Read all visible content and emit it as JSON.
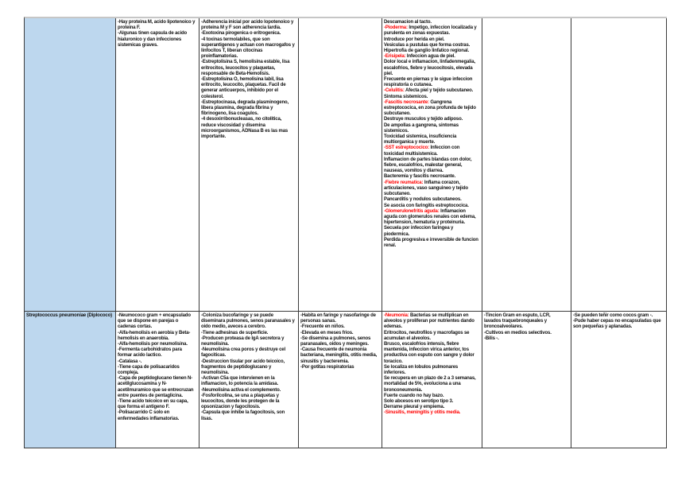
{
  "document": {
    "type": "study-notes-table",
    "language": "es",
    "topic": "Streptococcus"
  },
  "colors": {
    "row_header_bg": "#bdd7ee",
    "border": "#3b3b3b",
    "page_top_border": "#c6c6c6",
    "red_text": "#ff0000",
    "body_text": "#111111"
  },
  "table": {
    "column_keys": [
      "organism",
      "general-characteristics",
      "virulence-factors",
      "epidemiology",
      "diseases",
      "diagnosis",
      "observations"
    ],
    "rows": [
      {
        "organism": "",
        "cells": [
          [
            [
              {
                "t": "-Hay proteina M, acido lipotenoico y proteina F."
              }
            ],
            [
              {
                "t": "-Algunas tinen capsula de acido hialuronico y dan infecciones sistemicas graves."
              }
            ]
          ],
          [
            [
              {
                "t": "-Adherencia inicial por acido lopotenoico y proteina M y F son adherencia tardia."
              }
            ],
            [
              {
                "t": "-Exotoxina pirogenica o eritrogenica."
              }
            ],
            [
              {
                "t": "-4 toxinas termolabiles, que son superantigenos y actuan con macrogafos y linfocitos T, liberan citocinas proinflamatorias."
              }
            ],
            [
              {
                "t": "-Estreptolisina S, hemolisina estable, lisa eritrocitos, leucocitos y plaquetas, responsable de Beta-Hemolisis."
              }
            ],
            [
              {
                "t": "-Estreptolisina O, hemolisina labil, lisa eritrocito, leucocito, plaquetas. Facil de generar anticuerpos, inhibido por el colesterol."
              }
            ],
            [
              {
                "t": "-Estreptocinasa, degrada plasminogeno, libera plasmina, degrada fibrina y fibrinogeno, lisa coagulos."
              }
            ],
            [
              {
                "t": "-4 desoxirribonucleasas, no citolitica, reduce viscosidad y disemina microorganismos, ADNasa B es las mas importante."
              }
            ]
          ],
          [],
          [
            [
              {
                "t": "Descamacion al tacto."
              }
            ],
            [
              {
                "t": "-Pioderma:",
                "red": true
              },
              {
                "t": " Impetigo, infeccion localizada y purulenta en zonas expuestas."
              }
            ],
            [
              {
                "t": "Introduce por herida en piel."
              }
            ],
            [
              {
                "t": "Vesiculas a pustulas que forma costras."
              }
            ],
            [
              {
                "t": "Hipertrofia de ganglio linfatico regional."
              }
            ],
            [
              {
                "t": "-Erisipela:",
                "red": true
              },
              {
                "t": " Infeccion agua de piel."
              }
            ],
            [
              {
                "t": "Dolor local e inflamacion, linfadenmegalia, escalofrios, fiebre y leucocitosis, elevada piel."
              }
            ],
            [
              {
                "t": "Frecuente en piernas y le sigue infeccion respiratoria o cutanea."
              }
            ],
            [
              {
                "t": "-Celulitis:",
                "red": true
              },
              {
                "t": " Afecta piel y tejido subcutaneo. Sintoma sistemicos."
              }
            ],
            [
              {
                "t": "-Fascitis necrosante:",
                "red": true
              },
              {
                "t": " Gangrena estreptococica, en zona profunda de tejido subcutaneo."
              }
            ],
            [
              {
                "t": "Destruye musculos y tejido adiposo."
              }
            ],
            [
              {
                "t": "De ampollas a gangrena, sintomas sistemicos."
              }
            ],
            [
              {
                "t": "Toxicidad sistemica, insuficiencia multiorganica y muerte."
              }
            ],
            [
              {
                "t": "-SST estreptococico:",
                "red": true
              },
              {
                "t": " Infeccion con toxicidad multisistemica."
              }
            ],
            [
              {
                "t": "Inflamacion de partes blandas con dolor, fiebre, escalofrios, malestar general, nauseas, vomitos y diarrea."
              }
            ],
            [
              {
                "t": "Bacteremia y fascitis necrosante."
              }
            ],
            [
              {
                "t": "-Fiebre reumatica:",
                "red": true
              },
              {
                "t": " Inflama corazon, articulaciones, vaso sanguineo y tejido subcutaneo."
              }
            ],
            [
              {
                "t": "Pancarditis y nodulos subcutaneos."
              }
            ],
            [
              {
                "t": "Se asocia con faringitis estreptococica."
              }
            ],
            [
              {
                "t": "-Glomerulonefritis aguda:",
                "red": true
              },
              {
                "t": " Inflamacion aguda con glomerulos renales con edema, hipertension, hematuria y proteinuria."
              }
            ],
            [
              {
                "t": "Secuela por infeccion faringea y piodermica."
              }
            ],
            [
              {
                "t": "Perdida progresiva e irreversible de funcion renal."
              }
            ]
          ],
          [],
          []
        ]
      },
      {
        "organism": "Streptococcus pneumoniae (Diplococo)",
        "cells": [
          [
            [
              {
                "t": "-Neumococo gram + encapsulado que se dispone en parejas o cadenas cortas."
              }
            ],
            [
              {
                "t": "-Alfa-hemolisis en aerobia y Beta-hemolisis en anaerobia."
              }
            ],
            [
              {
                "t": "-Alfa-hemolisis por neumolisina."
              }
            ],
            [
              {
                "t": "-Fermenta carbohidratos para formar acido lactico."
              }
            ],
            [
              {
                "t": "-Catalasa -."
              }
            ],
            [
              {
                "t": "-Tiene capa de polisacaridos compleja."
              }
            ],
            [
              {
                "t": "-Capa de peptidoglucano tienen N-acetilglucosamina y N-acetilmuramico que se entrecruzan entre puentes de pentaglicina."
              }
            ],
            [
              {
                "t": "-Tiene acido teicoico en su capa, que forma el antigeno F."
              }
            ],
            [
              {
                "t": "-Polisacarrido C solo en enfermedades inflamatorias."
              }
            ]
          ],
          [
            [
              {
                "t": "-Coloniza bucofaringe y se puede diseminara pulmones, senos paranasales y oido medio, aveces a cerebro."
              }
            ],
            [
              {
                "t": "-Tiene adhesinas de superficie."
              }
            ],
            [
              {
                "t": "-Producen proteasa de IgA secretora y neumolisina."
              }
            ],
            [
              {
                "t": "-Neumolisina crea poros y destruye cel fagociticas."
              }
            ],
            [
              {
                "t": "-Destruccion tisular por acido teicoico, fragmentos de peptidoglucano y neumolisina."
              }
            ],
            [
              {
                "t": "-Activan C5a que intervienen en la inflamacion, lo potencia la amidasa."
              }
            ],
            [
              {
                "t": "-Neumolisina activa el complemento."
              }
            ],
            [
              {
                "t": "-Fosforilcolina, se una a plaquetas y leucocitos, donde les protegen de la opsonizacion y fagocitosis."
              }
            ],
            [
              {
                "t": "-Capsula que inhibe la fagocitosis, son lisas."
              }
            ]
          ],
          [
            [
              {
                "t": "-Habita en faringe y nasofaringe de personas sanas."
              }
            ],
            [
              {
                "t": "-Frecuente en niños."
              }
            ],
            [
              {
                "t": "-Elevada en meses frios."
              }
            ],
            [
              {
                "t": "-Se disemina a pulmones, senos paranasales, oidos y meninges."
              }
            ],
            [
              {
                "t": "-Causa frecuente de neumonia bacteriana, meningitis, otitis media, sinusitis y bacteremia."
              }
            ],
            [
              {
                "t": "-Por gotitas respiratorias"
              }
            ]
          ],
          [
            [
              {
                "t": "-Neumonia:",
                "red": true
              },
              {
                "t": " Bacterias se multiplican en alveolos y proliferan por nutrientes dando edemas."
              }
            ],
            [
              {
                "t": "Eritrocitos, neutrofilos y macrofagos se acumulan el alveolos."
              }
            ],
            [
              {
                "t": "Brusco, escalofrios intensis, fiebre mantenida, infeccion virica anterior, tos productiva con esputo con sangre y dolor toracico."
              }
            ],
            [
              {
                "t": "Se localiza en lobulos pulmonares inferiores."
              }
            ],
            [
              {
                "t": "Se recupera en un plazo de 2 a 3 semanas, mortalidad de 5%, evoluciona a una bronconeumonia."
              }
            ],
            [
              {
                "t": "Fuerte cuando no hay bazo."
              }
            ],
            [
              {
                "t": "Solo abcesos en serotipo tipo 3."
              }
            ],
            [
              {
                "t": "Derrame pleural y empiema."
              }
            ],
            [
              {
                "t": "-Sinusitis, meningitis y otitis media.",
                "red": true
              }
            ]
          ],
          [
            [
              {
                "t": "-Tincion Gram en esputo, LCR, lavados traquebronqueales y broncoalveolares."
              }
            ],
            [
              {
                "t": "-Cultivos en medios selectivos."
              }
            ],
            [
              {
                "t": "-Bilis -."
              }
            ]
          ],
          [
            [
              {
                "t": "-Se pueden teñir como cocos gram -."
              }
            ],
            [
              {
                "t": "-Pude haber cepas no encapsuladas que son pequeñas y aplanadas."
              }
            ]
          ]
        ]
      }
    ]
  }
}
